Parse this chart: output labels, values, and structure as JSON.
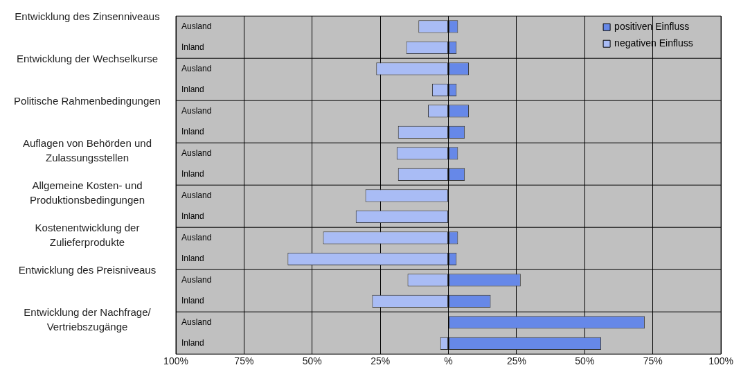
{
  "chart_data": {
    "type": "bar",
    "orientation": "horizontal",
    "stacked": true,
    "grid": "x",
    "legend": "top right",
    "categories": [
      "Ausland",
      "Inland",
      "Ausland",
      "Inland",
      "Ausland",
      "Inland",
      "Ausland",
      "Inland",
      "Ausland",
      "Inland",
      "Ausland",
      "Inland",
      "Ausland",
      "Inland",
      "Ausland",
      "Inland"
    ],
    "annotations": [
      "Entwicklung des Zinsenniveaus",
      "Entwicklung der Wechselkurse",
      "Politische Rahmenbedingungen",
      "Auflagen von Behörden und Zulassungsstellen",
      "Allgemeine Kosten- und Produktionsbedingungen",
      "Kostenentwicklung der Zulieferprodukte",
      "Entwicklung des Preisniveaus",
      "Entwicklung der Nachfrage/ Vertriebszugänge"
    ],
    "series": [
      {
        "name": "positiven Einfluss",
        "color": "#6688e8",
        "values": [
          3.5,
          3,
          7.5,
          3,
          7.5,
          6,
          3.5,
          6,
          null,
          null,
          3.5,
          3,
          26.5,
          15.5,
          72,
          56
        ]
      },
      {
        "name": "negativen Einfluss",
        "color": "#a9bcf5",
        "values": [
          -11,
          -15.5,
          -26.5,
          -6,
          -7.5,
          -18.5,
          -19,
          -18.5,
          -30.5,
          -34,
          -46,
          -59,
          -15,
          -28,
          null,
          -3
        ]
      }
    ],
    "xlim": [
      -100,
      100
    ],
    "xticks": [
      {
        "value": -100,
        "label": "100%"
      },
      {
        "value": -75,
        "label": "75%"
      },
      {
        "value": -50,
        "label": "50%"
      },
      {
        "value": -25,
        "label": "25%"
      },
      {
        "value": 0,
        "label": "%"
      },
      {
        "value": 25,
        "label": "25%"
      },
      {
        "value": 50,
        "label": "50%"
      },
      {
        "value": 75,
        "label": "75%"
      },
      {
        "value": 100,
        "label": "100%"
      }
    ]
  }
}
